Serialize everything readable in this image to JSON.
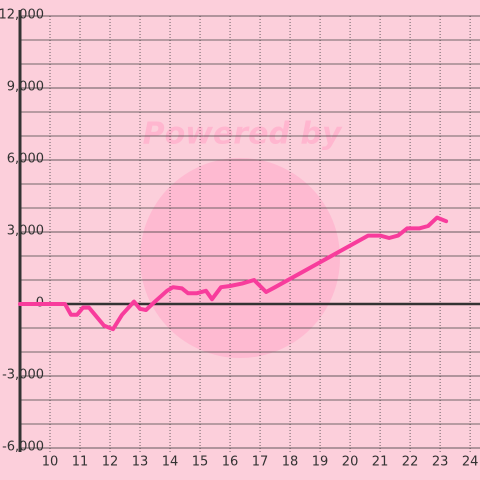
{
  "chart_data": {
    "type": "line",
    "watermark": "Powered by",
    "x": [
      9,
      10.5,
      10.7,
      10.9,
      11.1,
      11.3,
      11.5,
      11.8,
      12.1,
      12.4,
      12.8,
      13.0,
      13.2,
      13.5,
      13.9,
      14.1,
      14.4,
      14.6,
      14.9,
      15.2,
      15.4,
      15.7,
      16.0,
      16.4,
      16.8,
      17.2,
      17.5,
      20.6,
      21.0,
      21.3,
      21.6,
      21.9,
      22.3,
      22.6,
      22.9,
      23.2
    ],
    "series": [
      {
        "color": "#f83c9c",
        "values": [
          0,
          0,
          -450,
          -450,
          -150,
          -150,
          -450,
          -900,
          -1050,
          -450,
          100,
          -200,
          -250,
          100,
          550,
          700,
          650,
          450,
          450,
          550,
          200,
          700,
          750,
          850,
          1000,
          500,
          700,
          2850,
          2850,
          2750,
          2850,
          3150,
          3150,
          3250,
          3600,
          3450
        ]
      }
    ],
    "xlim": [
      9,
      24.33
    ],
    "ylim": [
      -6000,
      12000
    ],
    "xticks": [
      10,
      11,
      12,
      13,
      14,
      15,
      16,
      17,
      18,
      19,
      20,
      21,
      22,
      23,
      24
    ],
    "yticks": [
      {
        "value": -6000,
        "label": "-6,000"
      },
      {
        "value": -3000,
        "label": "-3,000"
      },
      0,
      {
        "value": 3000,
        "label": "3,000"
      },
      {
        "value": 6000,
        "label": "6,000"
      },
      {
        "value": 9000,
        "label": "9,000"
      },
      {
        "value": 12000,
        "label": "12,000"
      }
    ],
    "y_minor_ticks": [
      -5000,
      -4000,
      -2000,
      -1000,
      1000,
      2000,
      4000,
      5000,
      7000,
      8000,
      10000,
      11000
    ],
    "grid": true
  }
}
